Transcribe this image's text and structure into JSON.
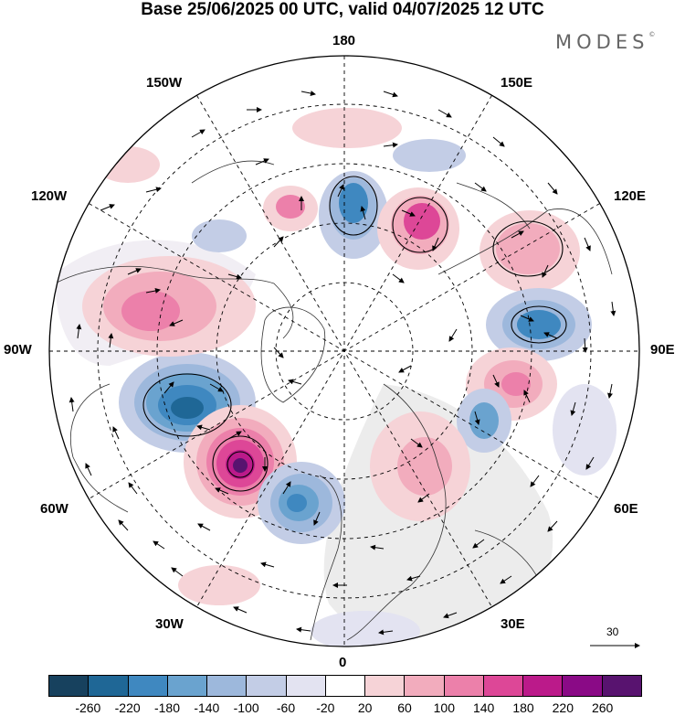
{
  "header": {
    "title": "Base 25/06/2025 00 UTC, valid 04/07/2025 12 UTC",
    "brand": "MODES",
    "brand_mark": "©"
  },
  "map": {
    "projection": "north-polar-stereographic",
    "longitude_labels": {
      "top": "180",
      "bottom": "0",
      "left": "90W",
      "right": "90E",
      "nw1": "150W",
      "nw2": "120W",
      "ne1": "150E",
      "ne2": "120E",
      "sw1": "60W",
      "sw2": "30W",
      "se1": "60E",
      "se2": "30E"
    },
    "reference_vector": "30",
    "anomaly_centers": [
      {
        "name": "negative-center-north-atlantic",
        "sign": "negative",
        "value": -240
      },
      {
        "name": "positive-center-greenland-sea",
        "sign": "positive",
        "value": 260
      },
      {
        "name": "negative-center-norwegian-sea",
        "sign": "negative",
        "value": -180
      },
      {
        "name": "positive-center-canada",
        "sign": "positive",
        "value": 140
      },
      {
        "name": "negative-center-chukchi",
        "sign": "negative",
        "value": -180
      },
      {
        "name": "positive-center-east-siberian",
        "sign": "positive",
        "value": 180
      },
      {
        "name": "positive-center-okhotsk",
        "sign": "positive",
        "value": 120
      },
      {
        "name": "negative-center-central-siberia",
        "sign": "negative",
        "value": -180
      },
      {
        "name": "positive-center-west-siberia",
        "sign": "positive",
        "value": 140
      },
      {
        "name": "negative-center-urals",
        "sign": "negative",
        "value": -120
      },
      {
        "name": "positive-center-scandinavia",
        "sign": "positive",
        "value": 100
      }
    ]
  },
  "colorbar": {
    "ticks": [
      "-260",
      "-220",
      "-180",
      "-140",
      "-100",
      "-60",
      "-20",
      "20",
      "60",
      "100",
      "140",
      "180",
      "220",
      "260"
    ],
    "colors": [
      "#17415e",
      "#1f6796",
      "#3f88c0",
      "#6aa3cf",
      "#9db8dc",
      "#c3cde6",
      "#e3e3f1",
      "#ffffff",
      "#f6d3d7",
      "#f2acbd",
      "#ec80aa",
      "#dd4797",
      "#bb1a8a",
      "#8a0a86",
      "#58136f"
    ]
  }
}
